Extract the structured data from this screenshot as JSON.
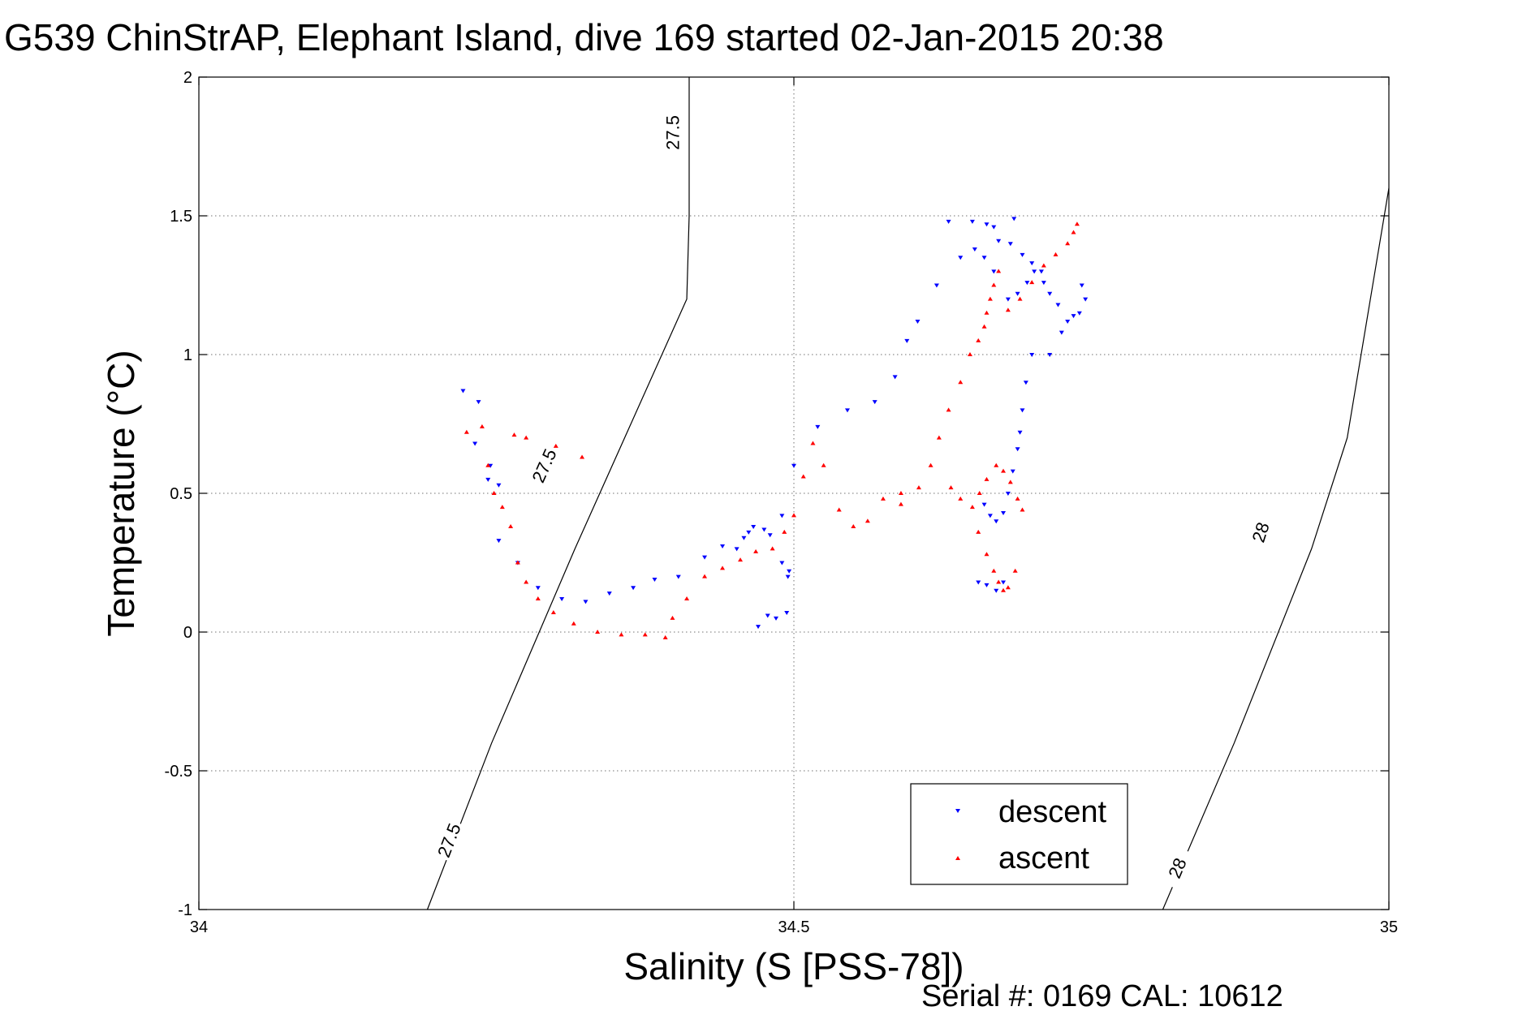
{
  "chart_data": {
    "type": "scatter",
    "title": "G539 ChinStrAP, Elephant Island, dive 169 started 02-Jan-2015 20:38",
    "xlabel": "Salinity (S [PSS-78])",
    "ylabel": "Temperature (°C)",
    "footer": "Serial #: 0169 CAL: 10612",
    "xlim": [
      34,
      35
    ],
    "ylim": [
      -1,
      2
    ],
    "x_ticks": [
      34,
      34.5,
      35
    ],
    "x_tick_labels": [
      "34",
      "34.5",
      "35"
    ],
    "y_ticks": [
      -1,
      -0.5,
      0,
      0.5,
      1,
      1.5,
      2
    ],
    "y_tick_labels": [
      "-1",
      "-0.5",
      "0",
      "0.5",
      "1",
      "1.5",
      "2"
    ],
    "grid": true,
    "legend_position": "bottom-right",
    "isopycnals": [
      {
        "label": "27.5",
        "points": [
          [
            34.192,
            -1.0
          ],
          [
            34.246,
            -0.4
          ],
          [
            34.316,
            0.3
          ],
          [
            34.41,
            1.2
          ],
          [
            34.412,
            1.5
          ],
          [
            34.412,
            2.0
          ]
        ],
        "label_positions": [
          [
            34.21,
            -0.75
          ],
          [
            34.29,
            0.6
          ],
          [
            34.398,
            1.8
          ]
        ]
      },
      {
        "label": "28",
        "points": [
          [
            34.81,
            -1.0
          ],
          [
            34.87,
            -0.4
          ],
          [
            34.935,
            0.3
          ],
          [
            34.965,
            0.7
          ],
          [
            35.0,
            1.6
          ]
        ],
        "label_positions": [
          [
            34.822,
            -0.85
          ],
          [
            34.892,
            0.36
          ]
        ]
      }
    ],
    "series": [
      {
        "name": "descent",
        "marker": "triangle-down",
        "color": "#0000ff",
        "segments": [
          {
            "x": [
              34.222,
              34.235,
              34.232,
              34.245,
              34.243,
              34.252
            ],
            "y": [
              0.87,
              0.83,
              0.68,
              0.6,
              0.55,
              0.53
            ]
          },
          {
            "x": [
              34.252,
              34.268,
              34.285,
              34.305,
              34.325,
              34.345,
              34.365,
              34.383,
              34.403,
              34.425,
              34.44,
              34.452,
              34.458,
              34.462,
              34.466,
              34.475,
              34.48,
              34.49,
              34.495
            ],
            "y": [
              0.33,
              0.25,
              0.16,
              0.12,
              0.11,
              0.14,
              0.16,
              0.19,
              0.2,
              0.27,
              0.31,
              0.3,
              0.34,
              0.36,
              0.38,
              0.37,
              0.35,
              0.25,
              0.2
            ]
          },
          {
            "x": [
              34.47,
              34.478,
              34.485,
              34.494,
              34.496,
              34.49
            ],
            "y": [
              0.02,
              0.06,
              0.05,
              0.07,
              0.22,
              0.42
            ]
          },
          {
            "x": [
              34.5,
              34.52,
              34.545,
              34.568,
              34.585,
              34.595,
              34.604,
              34.62,
              34.64,
              34.668,
              34.685
            ],
            "y": [
              0.6,
              0.74,
              0.8,
              0.83,
              0.92,
              1.05,
              1.12,
              1.25,
              1.35,
              1.46,
              1.49
            ]
          },
          {
            "x": [
              34.63,
              34.65,
              34.662,
              34.672,
              34.682,
              34.692,
              34.702,
              34.71,
              34.715,
              34.722,
              34.73,
              34.74,
              34.745,
              34.742,
              34.735,
              34.725,
              34.715
            ],
            "y": [
              1.48,
              1.48,
              1.47,
              1.41,
              1.4,
              1.36,
              1.3,
              1.26,
              1.22,
              1.18,
              1.12,
              1.15,
              1.2,
              1.25,
              1.14,
              1.08,
              1.0
            ]
          },
          {
            "x": [
              34.7,
              34.708,
              34.696,
              34.688,
              34.68,
              34.668,
              34.66,
              34.652
            ],
            "y": [
              1.33,
              1.3,
              1.26,
              1.22,
              1.2,
              1.3,
              1.35,
              1.38
            ]
          },
          {
            "x": [
              34.7,
              34.695,
              34.692,
              34.69,
              34.688,
              34.684,
              34.68,
              34.676,
              34.67,
              34.665,
              34.66
            ],
            "y": [
              1.0,
              0.9,
              0.8,
              0.72,
              0.66,
              0.58,
              0.5,
              0.43,
              0.4,
              0.42,
              0.46
            ]
          },
          {
            "x": [
              34.655,
              34.662,
              34.67,
              34.676
            ],
            "y": [
              0.18,
              0.17,
              0.15,
              0.18
            ]
          }
        ]
      },
      {
        "name": "ascent",
        "marker": "triangle-up",
        "color": "#ff0000",
        "segments": [
          {
            "x": [
              34.225,
              34.238,
              34.243,
              34.248,
              34.255,
              34.262,
              34.268,
              34.275,
              34.285,
              34.298,
              34.315,
              34.335,
              34.355,
              34.375,
              34.392
            ],
            "y": [
              0.72,
              0.74,
              0.6,
              0.5,
              0.45,
              0.38,
              0.25,
              0.18,
              0.12,
              0.07,
              0.03,
              0.0,
              -0.01,
              -0.01,
              -0.02
            ]
          },
          {
            "x": [
              34.265,
              34.275,
              34.3,
              34.322
            ],
            "y": [
              0.71,
              0.7,
              0.67,
              0.63
            ]
          },
          {
            "x": [
              34.398,
              34.41,
              34.425,
              34.44,
              34.455,
              34.468,
              34.482,
              34.492,
              34.5,
              34.508,
              34.516,
              34.525,
              34.538,
              34.55,
              34.562,
              34.575,
              34.59
            ],
            "y": [
              0.05,
              0.12,
              0.2,
              0.23,
              0.26,
              0.29,
              0.3,
              0.36,
              0.42,
              0.56,
              0.68,
              0.6,
              0.44,
              0.38,
              0.4,
              0.48,
              0.5
            ]
          },
          {
            "x": [
              34.59,
              34.605,
              34.615,
              34.622,
              34.63,
              34.64,
              34.648,
              34.655,
              34.66,
              34.662,
              34.665,
              34.668,
              34.672
            ],
            "y": [
              0.46,
              0.52,
              0.6,
              0.7,
              0.8,
              0.9,
              1.0,
              1.05,
              1.1,
              1.15,
              1.2,
              1.25,
              1.3
            ]
          },
          {
            "x": [
              34.632,
              34.64,
              34.65,
              34.656,
              34.662,
              34.67,
              34.676,
              34.682,
              34.688,
              34.692
            ],
            "y": [
              0.52,
              0.48,
              0.45,
              0.5,
              0.55,
              0.6,
              0.58,
              0.54,
              0.48,
              0.44
            ]
          },
          {
            "x": [
              34.68,
              34.69,
              34.7,
              34.71,
              34.72,
              34.73,
              34.735,
              34.738
            ],
            "y": [
              1.16,
              1.2,
              1.26,
              1.32,
              1.36,
              1.4,
              1.44,
              1.47
            ]
          },
          {
            "x": [
              34.655,
              34.662,
              34.668,
              34.672,
              34.676,
              34.68,
              34.686
            ],
            "y": [
              0.36,
              0.28,
              0.22,
              0.18,
              0.15,
              0.16,
              0.22
            ]
          }
        ]
      }
    ]
  }
}
